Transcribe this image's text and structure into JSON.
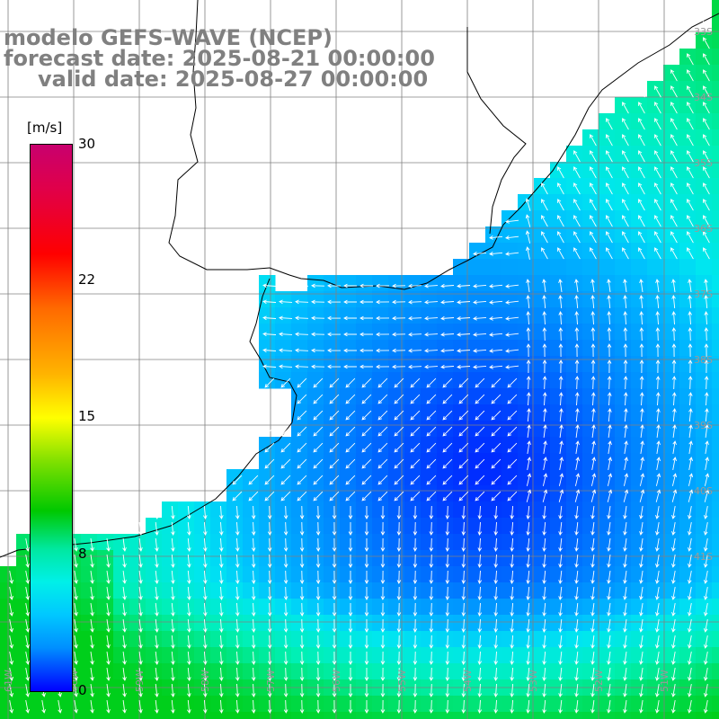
{
  "title": {
    "line1": "modelo GEFS-WAVE (NCEP)",
    "line2": "forecast date: 2025-08-21 00:00:00",
    "line3": "valid date: 2025-08-27 00:00:00"
  },
  "colorbar": {
    "unit": "[m/s]",
    "ticks": [
      "30",
      "22",
      "15",
      "8",
      "0"
    ],
    "colors": [
      "#c8006e",
      "#ff0000",
      "#ff8000",
      "#ffff00",
      "#00c800",
      "#00f0e8",
      "#0090ff",
      "#0000ff"
    ]
  },
  "axes": {
    "lat_labels": [
      "33S",
      "34S",
      "35S",
      "36S",
      "37S",
      "38S",
      "39S",
      "40S",
      "41S"
    ],
    "lon_labels": [
      "61W",
      "60W",
      "59W",
      "58W",
      "57W",
      "56W",
      "55W",
      "54W",
      "53W",
      "52W",
      "51W"
    ]
  },
  "field": {
    "variable": "wind speed",
    "units": "m/s",
    "range": [
      0,
      30
    ],
    "colors": {
      "land": "#ffffff",
      "coast": "#000000",
      "grid": "#808080",
      "arrow": "#ffffff"
    }
  }
}
